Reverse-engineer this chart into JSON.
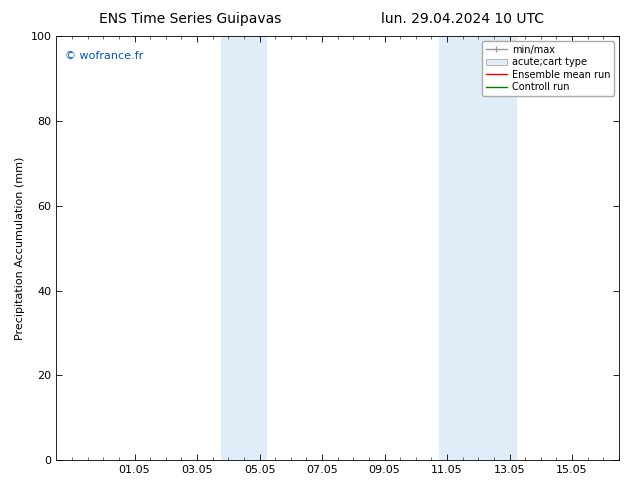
{
  "title_left": "ENS Time Series Guipavas",
  "title_right": "lun. 29.04.2024 10 UTC",
  "ylabel": "Precipitation Accumulation (mm)",
  "copyright_text": "© wofrance.fr",
  "copyright_color": "#0055cc",
  "ylim": [
    0,
    100
  ],
  "x_ticks_labels": [
    "01.05",
    "03.05",
    "05.05",
    "07.05",
    "09.05",
    "11.05",
    "13.05",
    "15.05"
  ],
  "x_ticks_values": [
    1,
    3,
    5,
    7,
    9,
    11,
    13,
    15
  ],
  "xlim": [
    -1.5,
    16.0
  ],
  "shaded_regions": [
    {
      "x_start": 3.75,
      "x_end": 4.5,
      "color": "#deedf8"
    },
    {
      "x_start": 4.5,
      "x_end": 5.25,
      "color": "#deedf8"
    },
    {
      "x_start": 10.75,
      "x_end": 11.5,
      "color": "#deedf8"
    },
    {
      "x_start": 11.5,
      "x_end": 13.25,
      "color": "#deedf8"
    }
  ],
  "legend_entries": [
    {
      "label": "min/max",
      "color": "#999999",
      "lw": 1.0,
      "style": "errbar"
    },
    {
      "label": "acute;cart type",
      "facecolor": "#deedf8",
      "edgecolor": "#aaaaaa",
      "style": "patch"
    },
    {
      "label": "Ensemble mean run",
      "color": "#ff0000",
      "lw": 1.0,
      "style": "line"
    },
    {
      "label": "Controll run",
      "color": "#008000",
      "lw": 1.0,
      "style": "line"
    }
  ],
  "bg_color": "#ffffff",
  "plot_bg_color": "#ffffff",
  "border_color": "#000000",
  "tick_color": "#000000",
  "title_fontsize": 10,
  "label_fontsize": 8,
  "tick_fontsize": 8,
  "legend_fontsize": 7
}
